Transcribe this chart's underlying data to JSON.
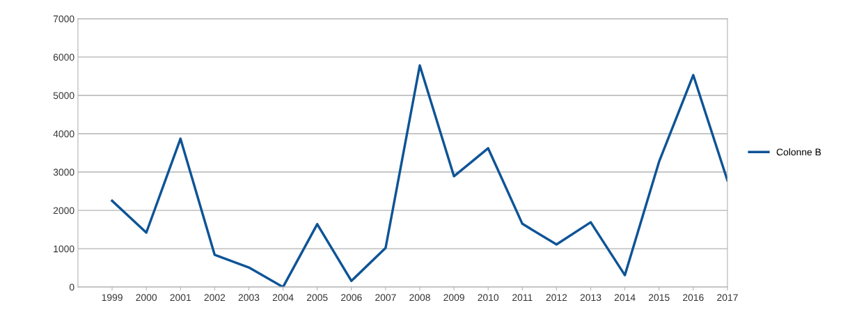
{
  "chart_data": {
    "type": "line",
    "categories": [
      "1999",
      "2000",
      "2001",
      "2002",
      "2003",
      "2004",
      "2005",
      "2006",
      "2007",
      "2008",
      "2009",
      "2010",
      "2011",
      "2012",
      "2013",
      "2014",
      "2015",
      "2016",
      "2017"
    ],
    "series": [
      {
        "name": "Colonne B",
        "color": "#0e5496",
        "values": [
          2250,
          1420,
          3870,
          840,
          510,
          0,
          1640,
          160,
          1020,
          5780,
          2890,
          3620,
          1650,
          1110,
          1690,
          310,
          3270,
          5530,
          2780
        ]
      }
    ],
    "ylim": [
      0,
      7000
    ],
    "yticks": [
      0,
      1000,
      2000,
      3000,
      4000,
      5000,
      6000,
      7000
    ],
    "grid": "y",
    "legend": "right",
    "marker": "none",
    "line_style": "solid"
  }
}
